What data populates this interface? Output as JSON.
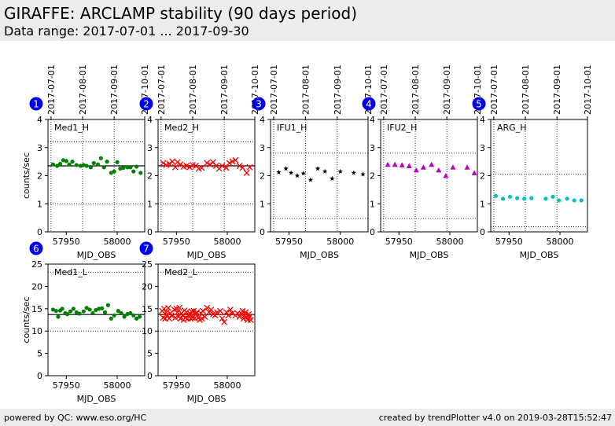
{
  "header": {
    "title": "GIRAFFE: ARCLAMP stability (90 days period)",
    "subtitle": "Data range: 2017-07-01 ... 2017-09-30"
  },
  "footer": {
    "left": "powered by QC: www.eso.org/HC",
    "right": "created by trendPlotter v4.0 on 2019-03-28T15:52:47"
  },
  "chart_data": [
    {
      "type": "scatter",
      "id": "1",
      "title": "Med1_H",
      "xlabel": "MJD_OBS",
      "ylabel": "counts/sec",
      "xlim": [
        57932,
        58027
      ],
      "ylim": [
        0,
        4
      ],
      "yticks": [
        0,
        1,
        2,
        3,
        4
      ],
      "xticks": [
        57950,
        58000
      ],
      "date_ticks": [
        "2017-07-01",
        "2017-08-01",
        "2017-09-01",
        "2017-10-01"
      ],
      "date_tick_mjd": [
        57935,
        57966,
        57997,
        58027
      ],
      "ref_lines": [
        1.0,
        2.35,
        3.2
      ],
      "ref_styles": [
        "dotted",
        "solid",
        "dotted"
      ],
      "marker": "circle",
      "color": "#008000",
      "x": [
        57937,
        57941,
        57944,
        57947,
        57950,
        57953,
        57956,
        57960,
        57964,
        57967,
        57970,
        57974,
        57977,
        57981,
        57984,
        57987,
        57990,
        57994,
        57997,
        58000,
        58003,
        58006,
        58010,
        58013,
        58016,
        58019,
        58023
      ],
      "y": [
        2.4,
        2.35,
        2.42,
        2.55,
        2.52,
        2.4,
        2.5,
        2.38,
        2.35,
        2.38,
        2.35,
        2.3,
        2.45,
        2.4,
        2.62,
        2.3,
        2.5,
        2.1,
        2.15,
        2.48,
        2.25,
        2.28,
        2.3,
        2.3,
        2.15,
        2.32,
        2.1
      ]
    },
    {
      "type": "scatter",
      "id": "2",
      "title": "Med2_H",
      "xlabel": "MJD_OBS",
      "ylabel": "",
      "xlim": [
        57932,
        58027
      ],
      "ylim": [
        0,
        4
      ],
      "yticks": [
        0,
        1,
        2,
        3,
        4
      ],
      "xticks": [
        57950,
        58000
      ],
      "date_ticks": [
        "2017-07-01",
        "2017-08-01",
        "2017-09-01",
        "2017-10-01"
      ],
      "date_tick_mjd": [
        57935,
        57966,
        57997,
        58027
      ],
      "ref_lines": [
        1.0,
        2.35,
        3.2
      ],
      "ref_styles": [
        "dotted",
        "solid",
        "dotted"
      ],
      "marker": "x",
      "color": "#ff0000",
      "x": [
        57937,
        57940,
        57943,
        57946,
        57949,
        57951,
        57954,
        57957,
        57960,
        57963,
        57966,
        57969,
        57972,
        57975,
        57980,
        57983,
        57986,
        57989,
        57992,
        57995,
        57999,
        58002,
        58005,
        58008,
        58012,
        58015,
        58019,
        58022
      ],
      "y": [
        2.45,
        2.38,
        2.42,
        2.5,
        2.3,
        2.48,
        2.4,
        2.32,
        2.35,
        2.3,
        2.38,
        2.35,
        2.25,
        2.28,
        2.45,
        2.4,
        2.48,
        2.35,
        2.25,
        2.35,
        2.28,
        2.45,
        2.5,
        2.55,
        2.35,
        2.28,
        2.1,
        2.3
      ]
    },
    {
      "type": "scatter",
      "id": "3",
      "title": "IFU1_H",
      "xlabel": "MJD_OBS",
      "ylabel": "",
      "xlim": [
        57932,
        58027
      ],
      "ylim": [
        0,
        4
      ],
      "yticks": [
        0,
        1,
        2,
        3,
        4
      ],
      "xticks": [
        57950,
        58000
      ],
      "date_ticks": [
        "2017-07-01",
        "2017-08-01",
        "2017-09-01",
        "2017-10-01"
      ],
      "date_tick_mjd": [
        57935,
        57966,
        57997,
        58027
      ],
      "ref_lines": [
        0.48,
        2.8
      ],
      "ref_styles": [
        "dotted",
        "dotted"
      ],
      "marker": "star",
      "color": "#000000",
      "x": [
        57940,
        57947,
        57952,
        57958,
        57964,
        57971,
        57978,
        57985,
        57992,
        58000,
        58013,
        58022
      ],
      "y": [
        2.12,
        2.25,
        2.1,
        2.0,
        2.08,
        1.85,
        2.25,
        2.15,
        1.9,
        2.15,
        2.1,
        2.05
      ]
    },
    {
      "type": "scatter",
      "id": "4",
      "title": "IFU2_H",
      "xlabel": "MJD_OBS",
      "ylabel": "",
      "xlim": [
        57932,
        58027
      ],
      "ylim": [
        0,
        4
      ],
      "yticks": [
        0,
        1,
        2,
        3,
        4
      ],
      "xticks": [
        57950,
        58000
      ],
      "date_ticks": [
        "2017-07-01",
        "2017-08-01",
        "2017-09-01",
        "2017-10-01"
      ],
      "date_tick_mjd": [
        57935,
        57966,
        57997,
        58027
      ],
      "ref_lines": [
        0.48,
        2.8
      ],
      "ref_styles": [
        "dotted",
        "dotted"
      ],
      "marker": "triangle",
      "color": "#c000c0",
      "x": [
        57939,
        57946,
        57953,
        57960,
        57967,
        57974,
        57982,
        57989,
        57996,
        58003,
        58017,
        58024
      ],
      "y": [
        2.4,
        2.4,
        2.38,
        2.35,
        2.2,
        2.3,
        2.4,
        2.2,
        2.0,
        2.3,
        2.3,
        2.1
      ]
    },
    {
      "type": "scatter",
      "id": "5",
      "title": "ARG_H",
      "xlabel": "MJD_OBS",
      "ylabel": "",
      "xlim": [
        57932,
        58027
      ],
      "ylim": [
        0,
        4
      ],
      "yticks": [
        0,
        1,
        2,
        3,
        4
      ],
      "xticks": [
        57950,
        58000
      ],
      "date_ticks": [
        "2017-07-01",
        "2017-08-01",
        "2017-09-01",
        "2017-10-01"
      ],
      "date_tick_mjd": [
        57935,
        57966,
        57997,
        58027
      ],
      "ref_lines": [
        0.18,
        2.05
      ],
      "ref_styles": [
        "dotted",
        "dotted"
      ],
      "marker": "circle",
      "color": "#00c0c0",
      "x": [
        57937,
        57944,
        57951,
        57958,
        57965,
        57972,
        57986,
        57993,
        57999,
        58007,
        58014,
        58021
      ],
      "y": [
        1.28,
        1.18,
        1.25,
        1.2,
        1.18,
        1.2,
        1.18,
        1.25,
        1.12,
        1.18,
        1.12,
        1.12
      ]
    },
    {
      "type": "scatter",
      "id": "6",
      "title": "Med1_L",
      "xlabel": "MJD_OBS",
      "ylabel": "counts/sec",
      "xlim": [
        57932,
        58027
      ],
      "ylim": [
        0,
        25
      ],
      "yticks": [
        0,
        5,
        10,
        15,
        20,
        25
      ],
      "xticks": [
        57950,
        58000
      ],
      "date_ticks": [],
      "date_tick_mjd": [],
      "ref_lines": [
        10,
        13.7,
        23.2
      ],
      "ref_styles": [
        "dotted",
        "solid",
        "dotted"
      ],
      "marker": "circle",
      "color": "#008000",
      "x": [
        57937,
        57940,
        57942,
        57944,
        57946,
        57949,
        57951,
        57954,
        57957,
        57960,
        57963,
        57967,
        57970,
        57973,
        57976,
        57979,
        57982,
        57985,
        57988,
        57991,
        57994,
        57997,
        58001,
        58004,
        58007,
        58010,
        58013,
        58016,
        58019,
        58022
      ],
      "y": [
        14.8,
        14.5,
        13.2,
        14.6,
        15.0,
        14.0,
        13.8,
        14.4,
        15.0,
        14.2,
        13.9,
        14.4,
        15.2,
        14.8,
        14.0,
        14.7,
        15.0,
        15.1,
        14.2,
        15.8,
        12.8,
        13.5,
        14.5,
        14.0,
        13.2,
        13.8,
        14.0,
        13.5,
        12.8,
        13.2
      ]
    },
    {
      "type": "scatter",
      "id": "7",
      "title": "Med2_L",
      "xlabel": "MJD_OBS",
      "ylabel": "",
      "xlim": [
        57932,
        58027
      ],
      "ylim": [
        0,
        25
      ],
      "yticks": [
        0,
        5,
        10,
        15,
        20,
        25
      ],
      "xticks": [
        57950,
        58000
      ],
      "date_ticks": [],
      "date_tick_mjd": [],
      "ref_lines": [
        10,
        13.7,
        23.2
      ],
      "ref_styles": [
        "dotted",
        "solid",
        "dotted"
      ],
      "marker": "x",
      "color": "#ff0000",
      "x": [
        57936,
        57937,
        57938,
        57939,
        57940,
        57941,
        57942,
        57943,
        57944,
        57945,
        57948,
        57949,
        57950,
        57951,
        57952,
        57953,
        57954,
        57955,
        57956,
        57957,
        57958,
        57959,
        57960,
        57961,
        57962,
        57963,
        57964,
        57965,
        57966,
        57967,
        57968,
        57969,
        57970,
        57972,
        57973,
        57974,
        57975,
        57976,
        57978,
        57980,
        57982,
        57984,
        57986,
        57988,
        57990,
        57993,
        57995,
        57997,
        57999,
        58001,
        58003,
        58005,
        58008,
        58010,
        58012,
        58014,
        58015,
        58016,
        58017,
        58018,
        58019,
        58020,
        58021,
        58022,
        58023
      ],
      "y": [
        14.5,
        13.0,
        15.0,
        12.8,
        14.2,
        13.5,
        15.2,
        12.8,
        14.0,
        13.5,
        14.8,
        13.0,
        15.0,
        14.2,
        13.2,
        15.2,
        12.8,
        14.0,
        13.5,
        12.5,
        14.6,
        13.0,
        14.2,
        12.8,
        13.5,
        14.0,
        12.8,
        14.4,
        13.0,
        14.5,
        12.9,
        13.8,
        14.2,
        13.0,
        12.5,
        14.0,
        12.8,
        14.5,
        13.2,
        15.2,
        14.2,
        14.8,
        13.8,
        13.5,
        14.2,
        14.5,
        12.8,
        12.0,
        14.2,
        13.5,
        14.8,
        14.0,
        13.5,
        14.0,
        13.2,
        13.8,
        14.5,
        12.8,
        13.5,
        14.2,
        13.0,
        12.5,
        13.8,
        13.2,
        12.5
      ]
    }
  ]
}
